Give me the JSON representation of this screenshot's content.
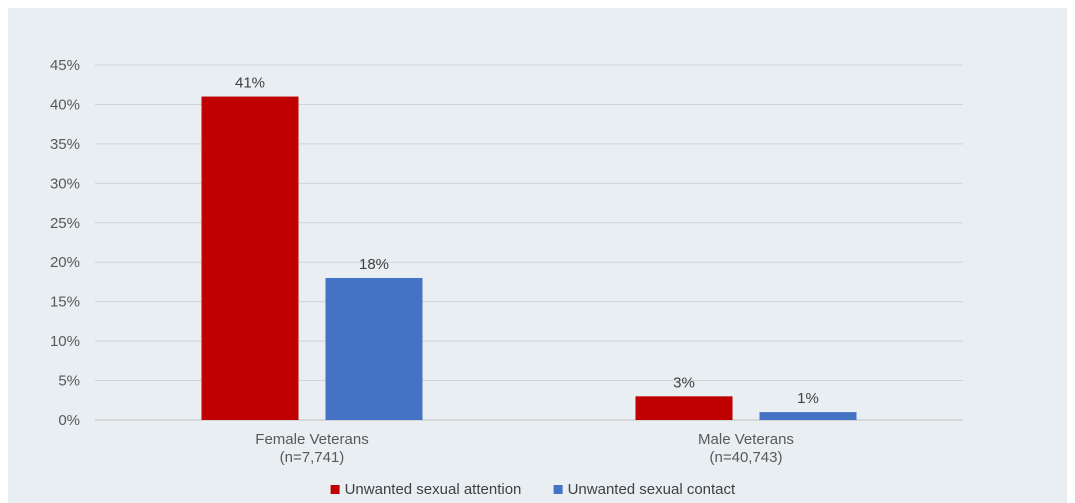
{
  "chart_data": {
    "type": "bar",
    "categories": [
      [
        "Female Veterans",
        "(n=7,741)"
      ],
      [
        "Male Veterans",
        "(n=40,743)"
      ]
    ],
    "series": [
      {
        "name": "Unwanted sexual attention",
        "color": "#c00000",
        "values": [
          41,
          3
        ],
        "labels": [
          "41%",
          "3%"
        ]
      },
      {
        "name": "Unwanted sexual contact",
        "color": "#4472c4",
        "values": [
          18,
          1
        ],
        "labels": [
          "18%",
          "1%"
        ]
      }
    ],
    "yticks": [
      "0%",
      "5%",
      "10%",
      "15%",
      "20%",
      "25%",
      "30%",
      "35%",
      "40%",
      "45%"
    ],
    "ylim": [
      0,
      45
    ],
    "ystep": 5,
    "grid": true,
    "legend_position": "bottom"
  }
}
